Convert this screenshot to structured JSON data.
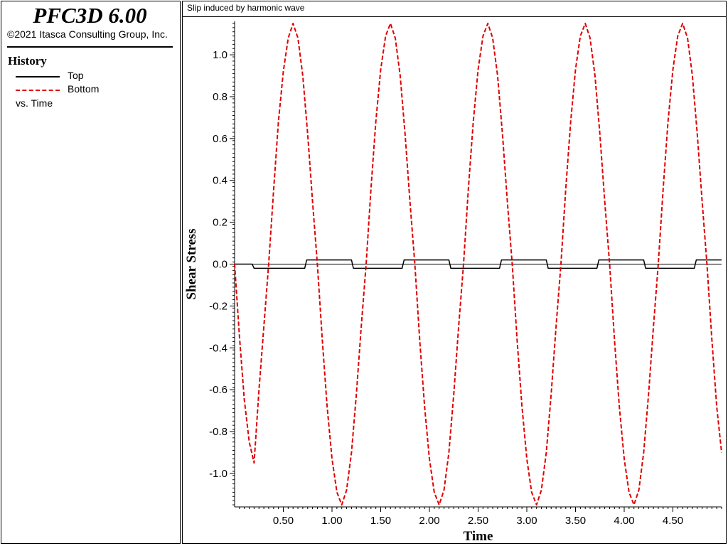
{
  "app": {
    "title": "PFC3D 6.00",
    "copyright": "©2021 Itasca Consulting Group, Inc."
  },
  "legend": {
    "heading": "History",
    "items": [
      {
        "label": "Top",
        "color": "#000000",
        "style": "solid"
      },
      {
        "label": "Bottom",
        "color": "#e00000",
        "style": "dashed"
      }
    ],
    "vs_label": "vs. Time"
  },
  "chart_data": {
    "type": "line",
    "title": "Slip induced by harmonic wave",
    "xlabel": "Time",
    "ylabel": "Shear Stress",
    "xlim": [
      0,
      5.0
    ],
    "ylim": [
      -1.16,
      1.16
    ],
    "xticks": [
      "0.50",
      "1.00",
      "1.50",
      "2.00",
      "2.50",
      "3.00",
      "3.50",
      "4.00",
      "4.50"
    ],
    "xtick_values": [
      0.5,
      1.0,
      1.5,
      2.0,
      2.5,
      3.0,
      3.5,
      4.0,
      4.5
    ],
    "yticks": [
      "1.0",
      "0.8",
      "0.6",
      "0.4",
      "0.2",
      "0.0",
      "-0.2",
      "-0.4",
      "-0.6",
      "-0.8",
      "-1.0"
    ],
    "ytick_values": [
      1.0,
      0.8,
      0.6,
      0.4,
      0.2,
      0.0,
      -0.2,
      -0.4,
      -0.6,
      -0.8,
      -1.0
    ],
    "grid": false,
    "series": [
      {
        "name": "Top",
        "color": "#000000",
        "dash": "solid",
        "points": [
          [
            0,
            0
          ],
          [
            0.18,
            0
          ],
          [
            0.2,
            -0.02
          ],
          [
            0.72,
            -0.02
          ],
          [
            0.74,
            0.02
          ],
          [
            1.2,
            0.02
          ],
          [
            1.22,
            -0.02
          ],
          [
            1.72,
            -0.02
          ],
          [
            1.74,
            0.02
          ],
          [
            2.2,
            0.02
          ],
          [
            2.22,
            -0.02
          ],
          [
            2.72,
            -0.02
          ],
          [
            2.74,
            0.02
          ],
          [
            3.2,
            0.02
          ],
          [
            3.22,
            -0.02
          ],
          [
            3.72,
            -0.02
          ],
          [
            3.74,
            0.02
          ],
          [
            4.2,
            0.02
          ],
          [
            4.22,
            -0.02
          ],
          [
            4.72,
            -0.02
          ],
          [
            4.74,
            0.02
          ],
          [
            5.0,
            0.02
          ]
        ]
      },
      {
        "name": "Bottom",
        "color": "#e00000",
        "dash": "dashed",
        "points": [
          [
            0,
            0
          ],
          [
            0.05,
            -0.35
          ],
          [
            0.1,
            -0.65
          ],
          [
            0.15,
            -0.85
          ],
          [
            0.2,
            -0.95
          ],
          [
            0.25,
            -0.6
          ],
          [
            0.3,
            -0.3
          ],
          [
            0.35,
            0.0
          ],
          [
            0.4,
            0.35
          ],
          [
            0.45,
            0.68
          ],
          [
            0.5,
            0.92
          ],
          [
            0.55,
            1.08
          ],
          [
            0.6,
            1.15
          ],
          [
            0.65,
            1.08
          ],
          [
            0.7,
            0.9
          ],
          [
            0.75,
            0.62
          ],
          [
            0.8,
            0.3
          ],
          [
            0.85,
            0.0
          ],
          [
            0.9,
            -0.36
          ],
          [
            0.95,
            -0.68
          ],
          [
            1.0,
            -0.93
          ],
          [
            1.05,
            -1.09
          ],
          [
            1.1,
            -1.15
          ],
          [
            1.15,
            -1.08
          ],
          [
            1.2,
            -0.9
          ],
          [
            1.25,
            -0.62
          ],
          [
            1.3,
            -0.3
          ],
          [
            1.35,
            0.0
          ],
          [
            1.4,
            0.36
          ],
          [
            1.45,
            0.68
          ],
          [
            1.5,
            0.93
          ],
          [
            1.55,
            1.09
          ],
          [
            1.6,
            1.15
          ],
          [
            1.65,
            1.08
          ],
          [
            1.7,
            0.9
          ],
          [
            1.75,
            0.62
          ],
          [
            1.8,
            0.3
          ],
          [
            1.85,
            0.0
          ],
          [
            1.9,
            -0.36
          ],
          [
            1.95,
            -0.68
          ],
          [
            2.0,
            -0.93
          ],
          [
            2.05,
            -1.09
          ],
          [
            2.1,
            -1.15
          ],
          [
            2.15,
            -1.08
          ],
          [
            2.2,
            -0.9
          ],
          [
            2.25,
            -0.62
          ],
          [
            2.3,
            -0.3
          ],
          [
            2.35,
            0.0
          ],
          [
            2.4,
            0.36
          ],
          [
            2.45,
            0.68
          ],
          [
            2.5,
            0.93
          ],
          [
            2.55,
            1.09
          ],
          [
            2.6,
            1.15
          ],
          [
            2.65,
            1.08
          ],
          [
            2.7,
            0.9
          ],
          [
            2.75,
            0.62
          ],
          [
            2.8,
            0.3
          ],
          [
            2.85,
            0.0
          ],
          [
            2.9,
            -0.36
          ],
          [
            2.95,
            -0.68
          ],
          [
            3.0,
            -0.93
          ],
          [
            3.05,
            -1.09
          ],
          [
            3.1,
            -1.15
          ],
          [
            3.15,
            -1.08
          ],
          [
            3.2,
            -0.9
          ],
          [
            3.25,
            -0.62
          ],
          [
            3.3,
            -0.3
          ],
          [
            3.35,
            0.0
          ],
          [
            3.4,
            0.36
          ],
          [
            3.45,
            0.68
          ],
          [
            3.5,
            0.93
          ],
          [
            3.55,
            1.09
          ],
          [
            3.6,
            1.15
          ],
          [
            3.65,
            1.08
          ],
          [
            3.7,
            0.9
          ],
          [
            3.75,
            0.62
          ],
          [
            3.8,
            0.3
          ],
          [
            3.85,
            0.0
          ],
          [
            3.9,
            -0.36
          ],
          [
            3.95,
            -0.68
          ],
          [
            4.0,
            -0.93
          ],
          [
            4.05,
            -1.09
          ],
          [
            4.1,
            -1.15
          ],
          [
            4.15,
            -1.08
          ],
          [
            4.2,
            -0.9
          ],
          [
            4.25,
            -0.62
          ],
          [
            4.3,
            -0.3
          ],
          [
            4.35,
            0.0
          ],
          [
            4.4,
            0.36
          ],
          [
            4.45,
            0.68
          ],
          [
            4.5,
            0.93
          ],
          [
            4.55,
            1.09
          ],
          [
            4.6,
            1.15
          ],
          [
            4.65,
            1.08
          ],
          [
            4.7,
            0.9
          ],
          [
            4.75,
            0.62
          ],
          [
            4.8,
            0.3
          ],
          [
            4.85,
            0.0
          ],
          [
            4.9,
            -0.36
          ],
          [
            4.95,
            -0.68
          ],
          [
            5.0,
            -0.9
          ]
        ]
      }
    ]
  }
}
